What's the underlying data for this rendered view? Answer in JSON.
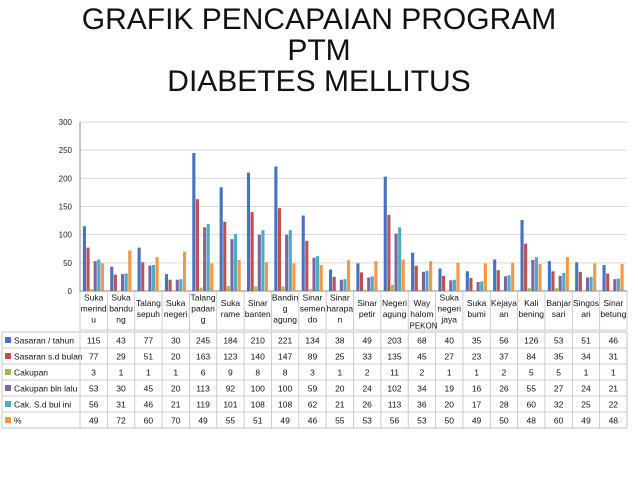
{
  "title_lines": [
    "GRAFIK PENCAPAIAN PROGRAM",
    "PTM",
    "DIABETES MELLITUS"
  ],
  "colors": {
    "Sasaran / tahun": "#4472c4",
    "Sasaran s.d bulan": "#c0504d",
    "Cakupan": "#9bbb59",
    "Cakupan bln lalu": "#8064a2",
    "Cak. S.d bul ini": "#4bacc6",
    "%": "#f79646"
  },
  "chart_data": {
    "type": "bar",
    "title": "GRAFIK PENCAPAIAN PROGRAM PTM DIABETES MELLITUS",
    "xlabel": "PEKON",
    "ylabel": "",
    "ylim": [
      0,
      300
    ],
    "yticks": [
      "0",
      "50",
      "100",
      "150",
      "200",
      "250",
      "300"
    ],
    "categories": [
      "Suka merindu",
      "Suka bandung",
      "Talang sepuh",
      "Suka negeri",
      "Talang padang",
      "Suka rame",
      "Sinar banten",
      "Banding agung",
      "Sinar semendo",
      "Sinar harapan",
      "Sinar petir",
      "Negeri agung",
      "Way halom",
      "Suka negeri jaya",
      "Suka bumi",
      "Kejayaan",
      "Kali bening",
      "Banjar sari",
      "Singosari",
      "Sinar betung"
    ],
    "category_lines": [
      [
        "Suka",
        "merind",
        "u"
      ],
      [
        "Suka",
        "bandu",
        "ng"
      ],
      [
        "Talang",
        "sepuh"
      ],
      [
        "Suka",
        "negeri"
      ],
      [
        "Talang",
        "padan",
        "g"
      ],
      [
        "Suka",
        "rame"
      ],
      [
        "Sinar",
        "banten"
      ],
      [
        "Bandin",
        "g",
        "agung"
      ],
      [
        "Sinar",
        "semen",
        "do"
      ],
      [
        "Sinar",
        "harapa",
        "n"
      ],
      [
        "Sinar",
        "petir"
      ],
      [
        "Negeri",
        "agung"
      ],
      [
        "Way",
        "halom"
      ],
      [
        "Suka",
        "negeri",
        "jaya"
      ],
      [
        "Suka",
        "bumi"
      ],
      [
        "Kejaya",
        "an"
      ],
      [
        "Kali",
        "bening"
      ],
      [
        "Banjar",
        "sari"
      ],
      [
        "Singos",
        "ari"
      ],
      [
        "Sinar",
        "betung"
      ]
    ],
    "series": [
      {
        "name": "Sasaran / tahun",
        "values": [
          115,
          43,
          77,
          30,
          245,
          184,
          210,
          221,
          134,
          38,
          49,
          203,
          68,
          40,
          35,
          56,
          126,
          53,
          51,
          46
        ]
      },
      {
        "name": "Sasaran s.d bulan",
        "values": [
          77,
          29,
          51,
          20,
          163,
          123,
          140,
          147,
          89,
          25,
          33,
          135,
          45,
          27,
          23,
          37,
          84,
          35,
          34,
          31
        ]
      },
      {
        "name": "Cakupan",
        "values": [
          3,
          1,
          1,
          1,
          6,
          9,
          8,
          8,
          3,
          1,
          2,
          11,
          2,
          1,
          1,
          2,
          5,
          5,
          1,
          1
        ]
      },
      {
        "name": "Cakupan bln lalu",
        "values": [
          53,
          30,
          45,
          20,
          113,
          92,
          100,
          100,
          59,
          20,
          24,
          102,
          34,
          19,
          16,
          26,
          55,
          27,
          24,
          21
        ]
      },
      {
        "name": "Cak. S.d bul ini",
        "values": [
          56,
          31,
          46,
          21,
          119,
          101,
          108,
          108,
          62,
          21,
          26,
          113,
          36,
          20,
          17,
          28,
          60,
          32,
          25,
          22
        ]
      },
      {
        "name": "%",
        "values": [
          49,
          72,
          60,
          70,
          49,
          55,
          51,
          49,
          46,
          55,
          53,
          56,
          53,
          50,
          49,
          50,
          48,
          60,
          49,
          48
        ]
      }
    ]
  }
}
